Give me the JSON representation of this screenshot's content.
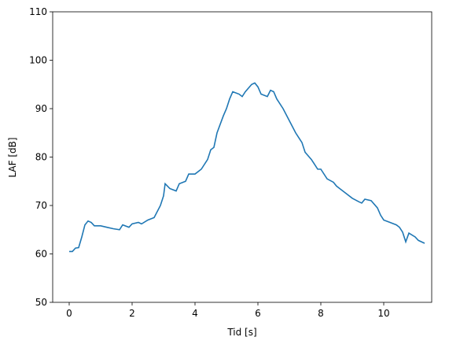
{
  "chart_data": {
    "type": "line",
    "xlabel": "Tid [s]",
    "ylabel": "LAF [dB]",
    "x": [
      0,
      0.1,
      0.2,
      0.3,
      0.4,
      0.5,
      0.6,
      0.7,
      0.8,
      1.0,
      1.2,
      1.4,
      1.6,
      1.7,
      1.9,
      2.0,
      2.2,
      2.3,
      2.5,
      2.7,
      2.9,
      3.0,
      3.05,
      3.2,
      3.4,
      3.5,
      3.7,
      3.8,
      4.0,
      4.2,
      4.4,
      4.5,
      4.6,
      4.7,
      4.9,
      5.0,
      5.1,
      5.2,
      5.4,
      5.5,
      5.6,
      5.8,
      5.9,
      6.0,
      6.1,
      6.3,
      6.4,
      6.5,
      6.6,
      6.8,
      7.0,
      7.2,
      7.4,
      7.5,
      7.7,
      7.8,
      7.9,
      8.0,
      8.2,
      8.4,
      8.5,
      8.6,
      8.8,
      9.0,
      9.2,
      9.3,
      9.4,
      9.6,
      9.8,
      9.9,
      10.0,
      10.2,
      10.4,
      10.5,
      10.6,
      10.7,
      10.8,
      11.0,
      11.1,
      11.3
    ],
    "series": [
      {
        "color": "#1f77b4",
        "values": [
          60.5,
          60.5,
          61.2,
          61.3,
          63.5,
          66,
          66.8,
          66.5,
          65.8,
          65.8,
          65.5,
          65.2,
          65.0,
          66,
          65.5,
          66.2,
          66.5,
          66.2,
          67,
          67.5,
          70,
          72,
          74.5,
          73.5,
          73,
          74.5,
          75,
          76.5,
          76.5,
          77.5,
          79.5,
          81.5,
          82,
          85,
          88.5,
          90,
          92,
          93.5,
          93,
          92.5,
          93.5,
          95,
          95.3,
          94.5,
          93,
          92.5,
          93.8,
          93.5,
          92,
          90,
          87.5,
          85,
          83,
          81,
          79.5,
          78.5,
          77.5,
          77.5,
          75.5,
          74.8,
          74,
          73.5,
          72.5,
          71.5,
          70.8,
          70.5,
          71.3,
          71,
          69.5,
          68,
          67,
          66.5,
          66,
          65.5,
          64.5,
          62.5,
          64.3,
          63.5,
          62.8,
          62.2
        ]
      }
    ],
    "xlim": [
      -0.525,
      11.525
    ],
    "ylim": [
      50,
      110
    ],
    "xticks": [
      0,
      2,
      4,
      6,
      8,
      10
    ],
    "yticks": [
      50,
      60,
      70,
      80,
      90,
      100,
      110
    ]
  }
}
